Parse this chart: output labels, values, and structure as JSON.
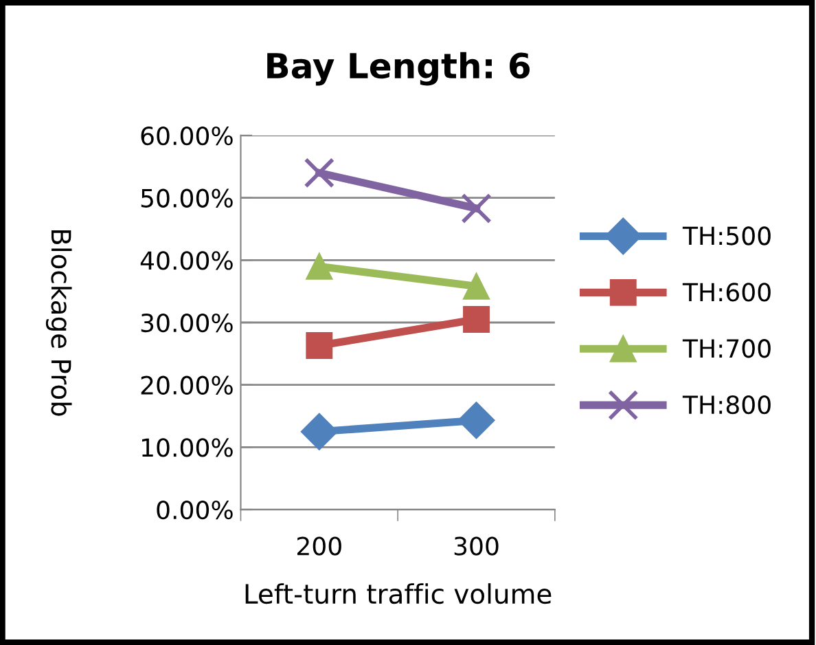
{
  "chart_data": {
    "type": "line",
    "title": "Bay Length: 6",
    "xlabel": "Left-turn traffic volume",
    "ylabel": "Blockage Prob",
    "categories": [
      "200",
      "300"
    ],
    "series": [
      {
        "name": "TH:500",
        "color": "#4f81bd",
        "marker": "diamond",
        "values": [
          12.5,
          14.3
        ]
      },
      {
        "name": "TH:600",
        "color": "#c0504d",
        "marker": "square",
        "values": [
          26.3,
          30.5
        ]
      },
      {
        "name": "TH:700",
        "color": "#9bbb59",
        "marker": "triangle",
        "values": [
          39.0,
          35.8
        ]
      },
      {
        "name": "TH:800",
        "color": "#8064a2",
        "marker": "cross",
        "values": [
          54.0,
          48.3
        ]
      }
    ],
    "ylim": [
      0,
      60
    ],
    "yticks": [
      {
        "value": 0,
        "label": "0.00%"
      },
      {
        "value": 10,
        "label": "10.00%"
      },
      {
        "value": 20,
        "label": "20.00%"
      },
      {
        "value": 30,
        "label": "30.00%"
      },
      {
        "value": 40,
        "label": "40.00%"
      },
      {
        "value": 50,
        "label": "50.00%"
      },
      {
        "value": 60,
        "label": "60.00%"
      }
    ],
    "grid": "y",
    "legend": "right",
    "line_style": "solid"
  }
}
